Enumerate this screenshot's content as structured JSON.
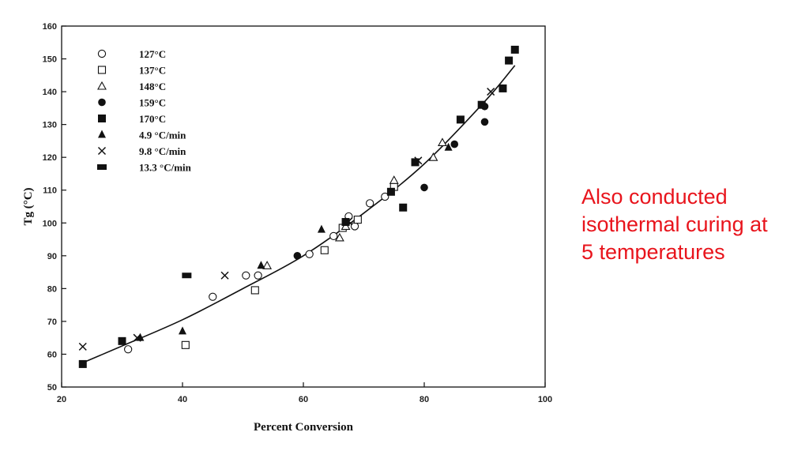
{
  "annotation": {
    "lines": [
      "Also conducted",
      "isothermal curing at",
      "5 temperatures"
    ],
    "color": "#e8141c"
  },
  "chart_data": {
    "type": "scatter",
    "title": "",
    "xlabel": "Percent Conversion",
    "ylabel": "Tg (°C)",
    "xlim": [
      20,
      100
    ],
    "ylim": [
      50,
      160
    ],
    "xticks": [
      20,
      40,
      60,
      80,
      100
    ],
    "yticks": [
      50,
      60,
      70,
      80,
      90,
      100,
      110,
      120,
      130,
      140,
      150,
      160
    ],
    "grid": false,
    "legend_position": "top-left",
    "series": [
      {
        "name": "127°C",
        "marker": "open-circle",
        "points": [
          [
            31,
            61.5
          ],
          [
            45,
            77.5
          ],
          [
            50.5,
            84
          ],
          [
            52.5,
            84
          ],
          [
            61,
            90.5
          ],
          [
            65,
            96
          ],
          [
            67.5,
            102
          ],
          [
            68.5,
            99
          ],
          [
            71,
            106
          ],
          [
            73.5,
            108
          ]
        ]
      },
      {
        "name": "137°C",
        "marker": "open-square",
        "points": [
          [
            40.5,
            62.8
          ],
          [
            52,
            79.5
          ],
          [
            63.5,
            91.7
          ],
          [
            66.5,
            98.5
          ],
          [
            69,
            101
          ],
          [
            75,
            111
          ]
        ]
      },
      {
        "name": "148°C",
        "marker": "open-triangle",
        "points": [
          [
            54,
            87
          ],
          [
            66,
            95.5
          ],
          [
            67,
            99
          ],
          [
            75,
            113
          ],
          [
            81.5,
            120
          ],
          [
            83,
            124.5
          ]
        ]
      },
      {
        "name": "159°C",
        "marker": "filled-circle",
        "points": [
          [
            59,
            90
          ],
          [
            80,
            110.8
          ],
          [
            85,
            124
          ],
          [
            90,
            130.8
          ],
          [
            90,
            135.5
          ]
        ]
      },
      {
        "name": "170°C",
        "marker": "filled-square",
        "points": [
          [
            23.5,
            57
          ],
          [
            30,
            64
          ],
          [
            67,
            100.3
          ],
          [
            74.5,
            109.5
          ],
          [
            76.5,
            104.7
          ],
          [
            78.5,
            118.5
          ],
          [
            86,
            131.5
          ],
          [
            89.5,
            136
          ],
          [
            93,
            141
          ],
          [
            94,
            149.5
          ],
          [
            95,
            152.8
          ]
        ]
      },
      {
        "name": "4.9 °C/min",
        "marker": "filled-triangle",
        "points": [
          [
            33,
            65
          ],
          [
            40,
            67
          ],
          [
            63,
            98
          ],
          [
            53,
            87
          ],
          [
            84,
            123
          ]
        ]
      },
      {
        "name": "9.8 °C/min",
        "marker": "star",
        "points": [
          [
            23.5,
            62.3
          ],
          [
            32.5,
            65
          ],
          [
            47,
            84
          ],
          [
            67.5,
            100.5
          ],
          [
            79,
            119
          ],
          [
            91,
            140
          ]
        ]
      },
      {
        "name": "13.3 °C/min",
        "marker": "filled-rect",
        "points": [
          [
            40.7,
            84
          ]
        ]
      }
    ],
    "fit_curve": {
      "x": [
        23,
        30,
        40,
        50,
        60,
        70,
        80,
        90,
        95
      ],
      "y": [
        57,
        62.5,
        70.5,
        80,
        90,
        103,
        118,
        137,
        148
      ]
    }
  }
}
